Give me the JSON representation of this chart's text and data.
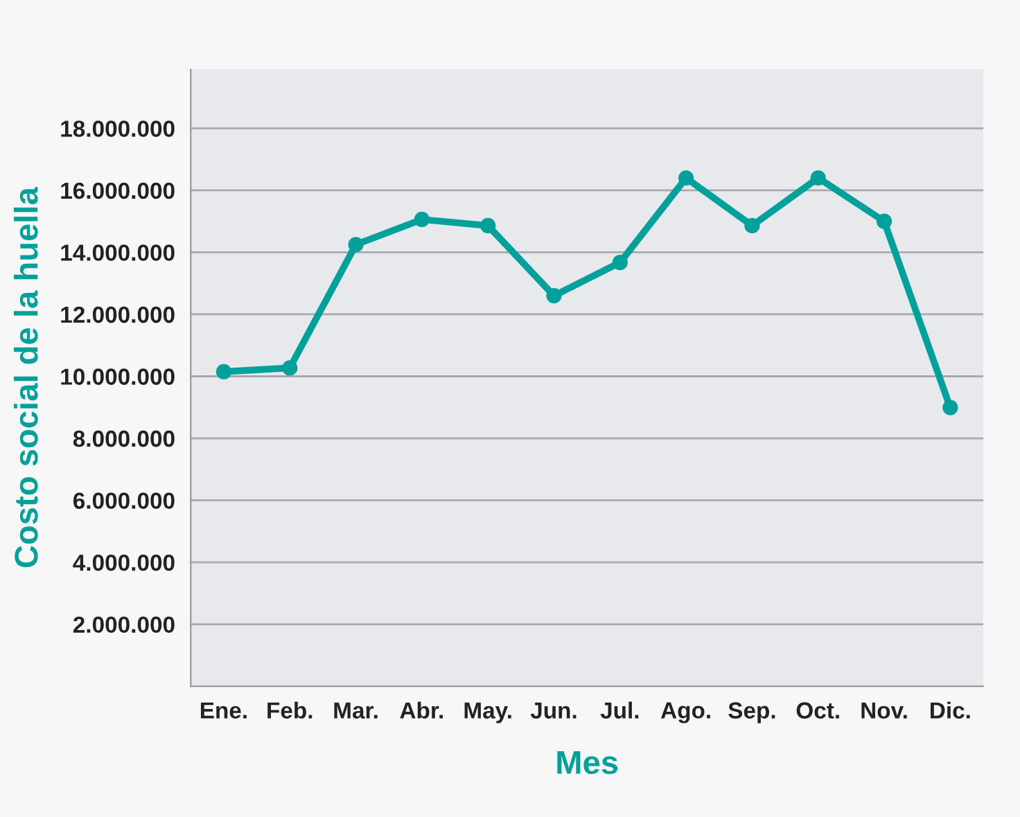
{
  "chart_data": {
    "type": "line",
    "xlabel": "Mes",
    "ylabel": "Costo social de la huella",
    "categories": [
      "Ene.",
      "Feb.",
      "Mar.",
      "Abr.",
      "May.",
      "Jun.",
      "Jul.",
      "Ago.",
      "Sep.",
      "Oct.",
      "Nov.",
      "Dic."
    ],
    "series": [
      {
        "color": "#00a19a",
        "values": [
          10150000,
          10270000,
          14250000,
          15060000,
          14860000,
          12600000,
          13670000,
          16400000,
          14860000,
          16400000,
          15000000,
          8990000
        ]
      }
    ],
    "ylim": [
      0,
      19900000
    ],
    "yticks": [
      {
        "value": 2000000,
        "label": "2.000.000"
      },
      {
        "value": 4000000,
        "label": "4.000.000"
      },
      {
        "value": 6000000,
        "label": "6.000.000"
      },
      {
        "value": 8000000,
        "label": "8.000.000"
      },
      {
        "value": 10000000,
        "label": "10.000.000"
      },
      {
        "value": 12000000,
        "label": "12.000.000"
      },
      {
        "value": 14000000,
        "label": "14.000.000"
      },
      {
        "value": 16000000,
        "label": "16.000.000"
      },
      {
        "value": 18000000,
        "label": "18.000.000"
      }
    ],
    "grid": "y",
    "marker": "circle",
    "line_style": "solid"
  }
}
